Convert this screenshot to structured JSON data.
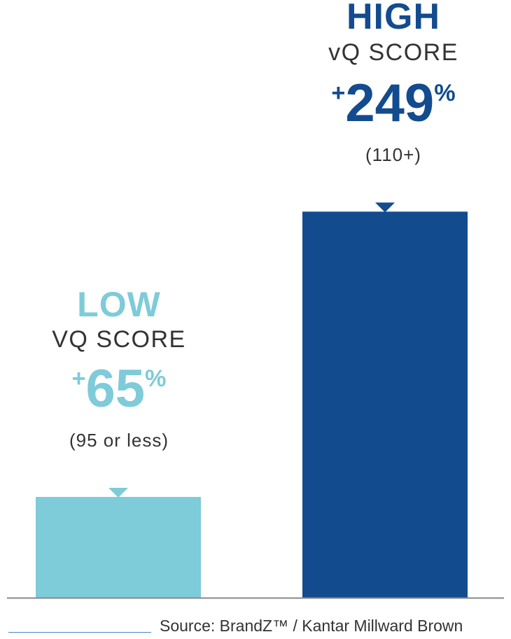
{
  "colors": {
    "low": "#7ecbd9",
    "high": "#134b8f",
    "axis": "#888888"
  },
  "chart_data": {
    "type": "bar",
    "categories": [
      "LOW",
      "HIGH"
    ],
    "values": [
      65,
      249
    ],
    "ylim": [
      0,
      260
    ],
    "grid": false,
    "title": "",
    "xlabel": "",
    "ylabel": "",
    "labels": [
      {
        "tier": "LOW",
        "metric": "VQ SCORE",
        "value_sign": "+",
        "value_num": "65",
        "value_unit": "%",
        "range": "(95 or less)"
      },
      {
        "tier": "HIGH",
        "metric": "vQ SCORE",
        "value_sign": "+",
        "value_num": "249",
        "value_unit": "%",
        "range": "(110+)"
      }
    ]
  },
  "source": "Source: BrandZ™ / Kantar Millward Brown"
}
